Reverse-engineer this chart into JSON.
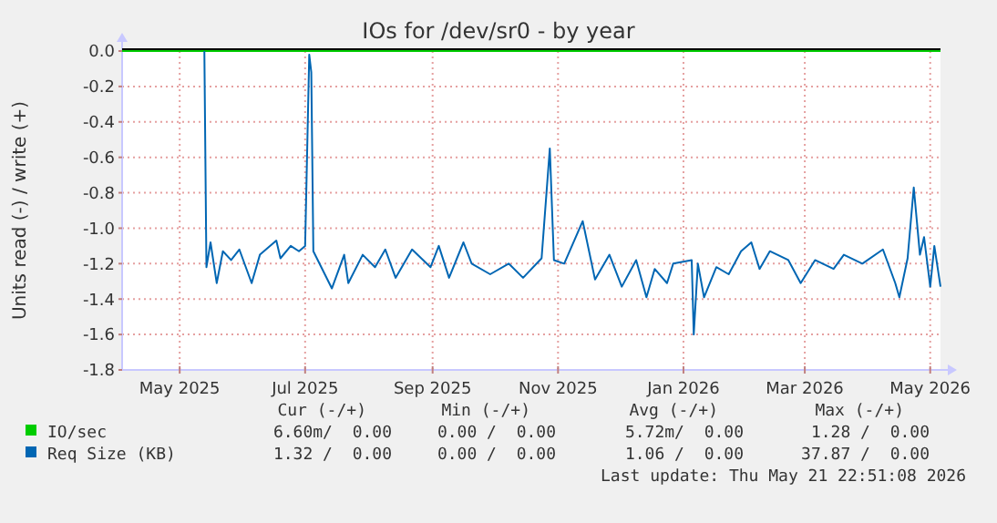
{
  "chart_data": {
    "type": "line",
    "title": "IOs for /dev/sr0 - by year",
    "ylabel": "Units read (-) / write (+)",
    "xlim": [
      "2025-04-03",
      "2026-05-06"
    ],
    "ylim": [
      -1.8,
      0
    ],
    "xticks": [
      {
        "value": "2025-05-01",
        "label": "May 2025"
      },
      {
        "value": "2025-07-01",
        "label": "Jul 2025"
      },
      {
        "value": "2025-09-01",
        "label": "Sep 2025"
      },
      {
        "value": "2025-11-01",
        "label": "Nov 2025"
      },
      {
        "value": "2026-01-01",
        "label": "Jan 2026"
      },
      {
        "value": "2026-03-01",
        "label": "Mar 2026"
      },
      {
        "value": "2026-05-01",
        "label": "May 2026"
      }
    ],
    "yticks": [
      {
        "value": 0,
        "label": "0.0"
      },
      -0.2,
      -0.4,
      -0.6,
      -0.8,
      {
        "value": -1,
        "label": "-1.0"
      },
      -1.2,
      -1.4,
      -1.6,
      -1.8
    ],
    "grid": true,
    "legend": "bottom",
    "line_style": "solid",
    "marker": "none",
    "ref_lines": [
      {
        "axis": "y",
        "value": 0,
        "color": "#000000"
      }
    ],
    "series": [
      {
        "name": "IO/sec",
        "color": "#00cc00",
        "x": [
          "2025-04-03",
          "2026-05-06"
        ],
        "values": [
          0,
          0
        ]
      },
      {
        "name": "Req Size (KB)",
        "color": "#0066b3",
        "x": [
          "2025-05-13",
          "2025-05-14",
          "2025-05-16",
          "2025-05-19",
          "2025-05-22",
          "2025-05-26",
          "2025-05-30",
          "2025-06-05",
          "2025-06-09",
          "2025-06-17",
          "2025-06-19",
          "2025-06-24",
          "2025-06-28",
          "2025-07-01",
          "2025-07-03",
          "2025-07-04",
          "2025-07-05",
          "2025-07-14",
          "2025-07-20",
          "2025-07-22",
          "2025-07-29",
          "2025-08-04",
          "2025-08-09",
          "2025-08-14",
          "2025-08-22",
          "2025-08-31",
          "2025-09-04",
          "2025-09-09",
          "2025-09-16",
          "2025-09-20",
          "2025-09-29",
          "2025-10-08",
          "2025-10-15",
          "2025-10-24",
          "2025-10-28",
          "2025-10-30",
          "2025-11-04",
          "2025-11-13",
          "2025-11-17",
          "2025-11-19",
          "2025-11-26",
          "2025-12-02",
          "2025-12-09",
          "2025-12-14",
          "2025-12-18",
          "2025-12-24",
          "2025-12-27",
          "2026-01-05",
          "2026-01-06",
          "2026-01-08",
          "2026-01-11",
          "2026-01-17",
          "2026-01-23",
          "2026-01-29",
          "2026-02-03",
          "2026-02-07",
          "2026-02-12",
          "2026-02-21",
          "2026-02-27",
          "2026-03-06",
          "2026-03-15",
          "2026-03-20",
          "2026-03-29",
          "2026-04-08",
          "2026-04-14",
          "2026-04-16",
          "2026-04-20",
          "2026-04-23",
          "2026-04-26",
          "2026-04-28",
          "2026-05-01",
          "2026-05-03",
          "2026-05-06"
        ],
        "values": [
          0,
          -1.22,
          -1.08,
          -1.31,
          -1.13,
          -1.18,
          -1.12,
          -1.31,
          -1.15,
          -1.07,
          -1.17,
          -1.1,
          -1.13,
          -1.1,
          -0.02,
          -0.12,
          -1.13,
          -1.34,
          -1.15,
          -1.31,
          -1.15,
          -1.22,
          -1.12,
          -1.28,
          -1.12,
          -1.22,
          -1.1,
          -1.28,
          -1.08,
          -1.2,
          -1.26,
          -1.2,
          -1.28,
          -1.17,
          -0.55,
          -1.18,
          -1.2,
          -0.96,
          -1.18,
          -1.29,
          -1.15,
          -1.33,
          -1.18,
          -1.39,
          -1.23,
          -1.31,
          -1.2,
          -1.18,
          -1.6,
          -1.2,
          -1.39,
          -1.22,
          -1.26,
          -1.13,
          -1.08,
          -1.23,
          -1.13,
          -1.18,
          -1.31,
          -1.18,
          -1.23,
          -1.15,
          -1.2,
          -1.12,
          -1.31,
          -1.39,
          -1.17,
          -0.77,
          -1.15,
          -1.05,
          -1.33,
          -1.1,
          -1.33
        ]
      }
    ],
    "annotations": [
      "Cur (-/+)",
      "Min (-/+)",
      "Avg (-/+)",
      "Max (-/+)",
      "6.60m/  0.00",
      "0.00 /  0.00",
      "5.72m/  0.00",
      "1.28 /  0.00",
      "1.32 /  0.00",
      "0.00 /  0.00",
      "1.06 /  0.00",
      "37.87 /  0.00",
      "Last update: Thu May 21 22:51:08 2026"
    ]
  }
}
